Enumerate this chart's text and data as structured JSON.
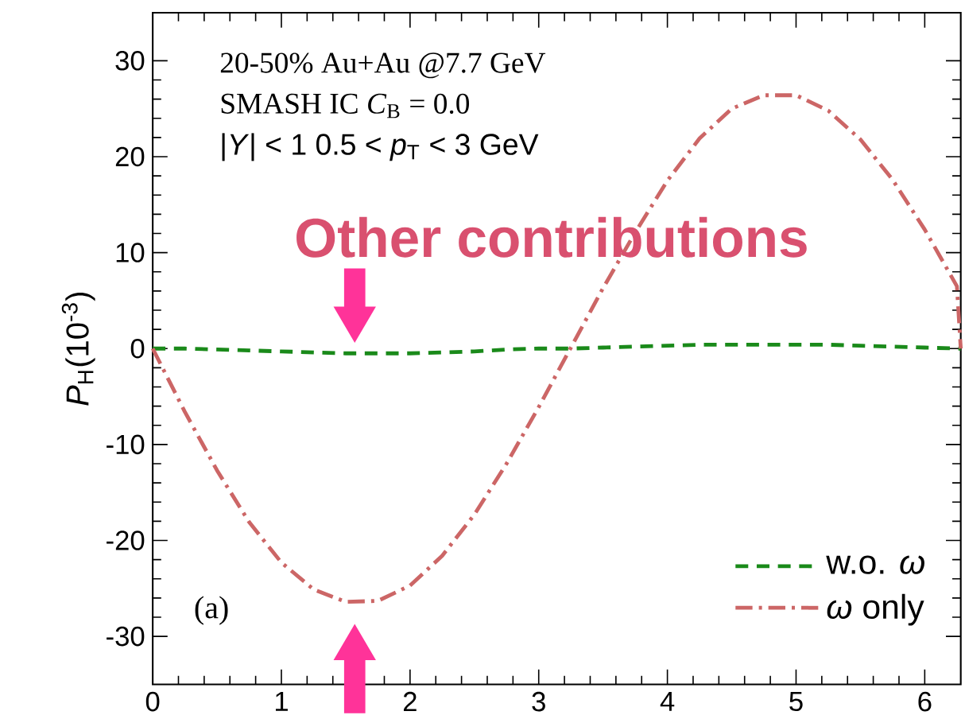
{
  "chart_data": {
    "type": "line",
    "ylabel": "*P*$_{H}$(10$^{-3}$)",
    "x": [
      0,
      0.25,
      0.5,
      0.75,
      1,
      1.25,
      1.5,
      1.75,
      2,
      2.25,
      2.5,
      2.75,
      3,
      3.25,
      3.5,
      3.75,
      4,
      4.25,
      4.5,
      4.75,
      5,
      5.25,
      5.5,
      5.75,
      6,
      6.25,
      6.28
    ],
    "series": [
      {
        "name": "w.o. *ω*",
        "color": "#1a8a1a",
        "line_style": "dashed",
        "values": [
          0,
          0,
          -0.1,
          -0.2,
          -0.3,
          -0.4,
          -0.5,
          -0.5,
          -0.5,
          -0.4,
          -0.3,
          -0.1,
          0,
          0,
          0.1,
          0.2,
          0.3,
          0.4,
          0.4,
          0.4,
          0.4,
          0.4,
          0.3,
          0.2,
          0.1,
          0,
          0
        ]
      },
      {
        "name": "*ω* only",
        "color": "#cc6666",
        "line_style": "dashdot",
        "values": [
          0,
          -6.6,
          -12.7,
          -18.1,
          -22.3,
          -25.1,
          -26.4,
          -26.3,
          -24.7,
          -21.6,
          -17.3,
          -12.0,
          -6.1,
          0.1,
          6.3,
          12.1,
          17.5,
          21.9,
          25.0,
          26.4,
          26.4,
          24.8,
          21.8,
          17.6,
          12.4,
          6.5,
          0
        ]
      }
    ],
    "xlim": [
      0,
      6.28
    ],
    "xticks": [
      0,
      1,
      2,
      3,
      4,
      5,
      6
    ],
    "ylim": [
      -35,
      35
    ],
    "yticks": [
      -30,
      -20,
      -10,
      0,
      10,
      20,
      30
    ],
    "legend": "bottom right",
    "marker": "none",
    "grid": false,
    "annotations": [
      "20-50% Au+Au @7.7 GeV",
      "SMASH IC  *C*$_{B}$ = 0.0",
      "|*Y*| < 1  0.5 < *p*$_{T}$ < 3 GeV",
      "(a)",
      {
        "text": "Other contributions",
        "x": 1.57,
        "y": -0.5
      }
    ]
  }
}
